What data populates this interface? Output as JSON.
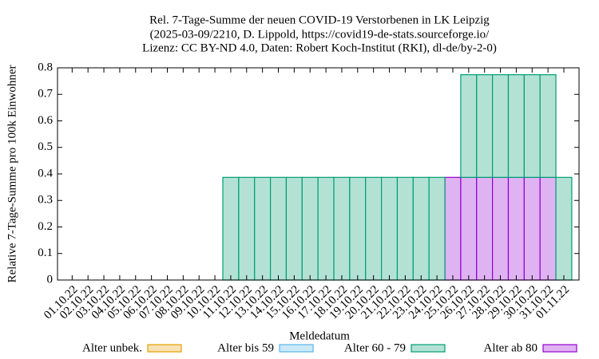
{
  "chart_data": {
    "type": "stacked-bar",
    "title": [
      "Rel. 7-Tage-Summe der neuen COVID-19 Verstorbenen in LK Leipzig",
      "(2025-03-09/2210, D. Lippold, https://covid19-de-stats.sourceforge.io/",
      "Lizenz: CC BY-ND 4.0, Daten: Robert Koch-Institut (RKI), dl-de/by-2-0)"
    ],
    "xlabel": "Meldedatum",
    "ylabel": "Relative 7-Tage-Summe pro 100k Einwohner",
    "categories": [
      "01.10.22",
      "02.10.22",
      "03.10.22",
      "04.10.22",
      "05.10.22",
      "06.10.22",
      "07.10.22",
      "08.10.22",
      "09.10.22",
      "10.10.22",
      "11.10.22",
      "12.10.22",
      "13.10.22",
      "14.10.22",
      "15.10.22",
      "16.10.22",
      "17.10.22",
      "18.10.22",
      "19.10.22",
      "20.10.22",
      "21.10.22",
      "22.10.22",
      "23.10.22",
      "24.10.22",
      "25.10.22",
      "26.10.22",
      "27.10.22",
      "28.10.22",
      "29.10.22",
      "30.10.22",
      "31.10.22",
      "01.11.22"
    ],
    "series": [
      {
        "name": "Alter unbek.",
        "color": "#e69f00",
        "values": [
          0,
          0,
          0,
          0,
          0,
          0,
          0,
          0,
          0,
          0,
          0,
          0,
          0,
          0,
          0,
          0,
          0,
          0,
          0,
          0,
          0,
          0,
          0,
          0,
          0,
          0,
          0,
          0,
          0,
          0,
          0,
          0
        ]
      },
      {
        "name": "Alter bis 59",
        "color": "#56b4e9",
        "values": [
          0,
          0,
          0,
          0,
          0,
          0,
          0,
          0,
          0,
          0,
          0,
          0,
          0,
          0,
          0,
          0,
          0,
          0,
          0,
          0,
          0,
          0,
          0,
          0,
          0,
          0,
          0,
          0,
          0,
          0,
          0,
          0
        ]
      },
      {
        "name": "Alter ab 80",
        "color": "#9400d3",
        "values": [
          0,
          0,
          0,
          0,
          0,
          0,
          0,
          0,
          0,
          0,
          0,
          0,
          0,
          0,
          0,
          0,
          0,
          0,
          0,
          0,
          0,
          0,
          0,
          0,
          0.387,
          0.387,
          0.387,
          0.387,
          0.387,
          0.387,
          0.387,
          0
        ]
      },
      {
        "name": "Alter 60 - 79",
        "color": "#009e73",
        "values": [
          0,
          0,
          0,
          0,
          0,
          0,
          0,
          0,
          0,
          0,
          0.387,
          0.387,
          0.387,
          0.387,
          0.387,
          0.387,
          0.387,
          0.387,
          0.387,
          0.387,
          0.387,
          0.387,
          0.387,
          0.387,
          0,
          0.387,
          0.387,
          0.387,
          0.387,
          0.387,
          0.387,
          0.387
        ]
      }
    ],
    "ylim": [
      0,
      0.8
    ],
    "yticks": [
      0,
      0.1,
      0.2,
      0.3,
      0.4,
      0.5,
      0.6,
      0.7,
      0.8
    ]
  }
}
